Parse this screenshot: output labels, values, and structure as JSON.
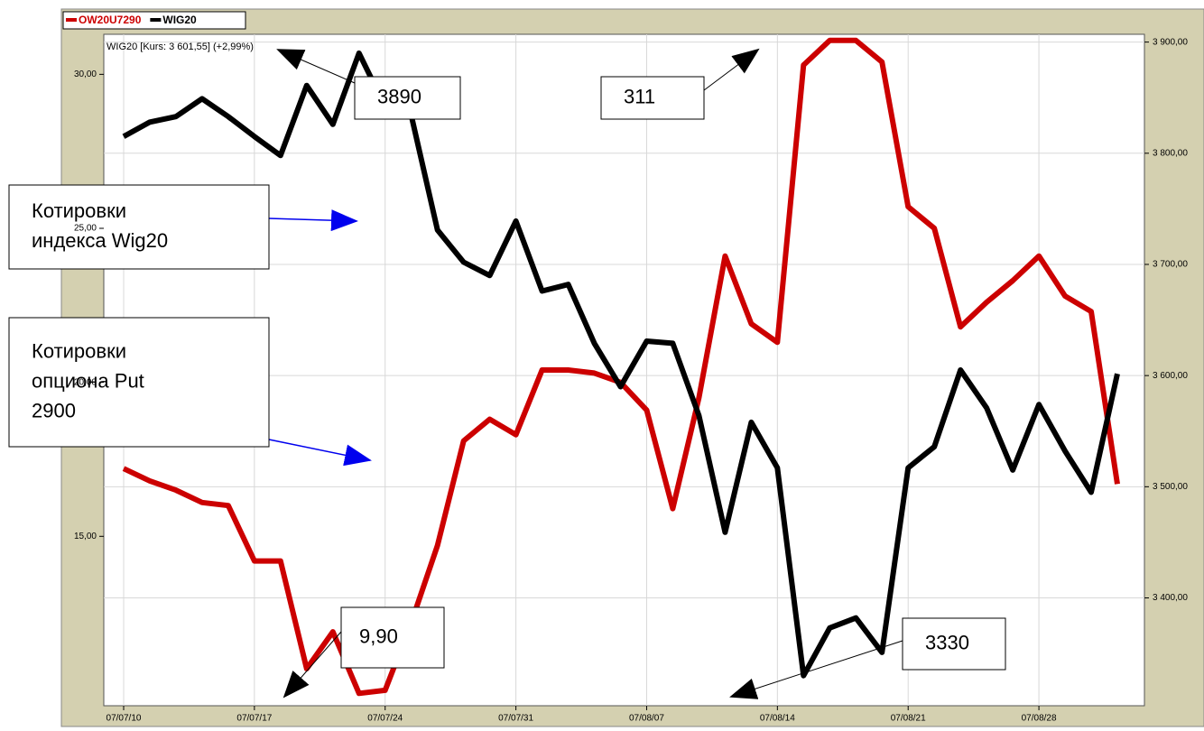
{
  "chart_data": {
    "type": "line",
    "info_text": "WIG20 [Kurs: 3 601,55] (+2,99%)",
    "categories": [
      "07/07/10",
      null,
      null,
      null,
      null,
      "07/07/17",
      null,
      null,
      null,
      null,
      "07/07/24",
      null,
      null,
      null,
      null,
      "07/07/31",
      null,
      null,
      null,
      null,
      "07/08/07",
      null,
      null,
      null,
      null,
      "07/08/14",
      null,
      null,
      null,
      null,
      "07/08/21",
      null,
      null,
      null,
      null,
      "07/08/28",
      null,
      null,
      null
    ],
    "series": [
      {
        "name": "OW20U7290",
        "color": "#cc0000",
        "axis": "y",
        "values": [
          17.2,
          16.8,
          16.5,
          16.1,
          16.0,
          14.2,
          14.2,
          10.7,
          11.9,
          9.9,
          10.0,
          12.2,
          14.7,
          18.1,
          18.8,
          18.3,
          20.4,
          20.4,
          20.3,
          20.0,
          19.1,
          15.9,
          19.5,
          24.1,
          21.9,
          21.3,
          30.3,
          31.1,
          31.1,
          30.4,
          25.7,
          25.0,
          21.8,
          22.6,
          23.3,
          24.1,
          22.8,
          22.3,
          16.7
        ]
      },
      {
        "name": "WIG20",
        "color": "#000000",
        "axis": "y2",
        "values": [
          3815,
          3828,
          3833,
          3849,
          3833,
          3815,
          3798,
          3861,
          3826,
          3890,
          3842,
          3834,
          3731,
          3702,
          3690,
          3739,
          3676,
          3682,
          3629,
          3590,
          3631,
          3629,
          3564,
          3459,
          3558,
          3517,
          3330,
          3373,
          3382,
          3351,
          3517,
          3536,
          3605,
          3571,
          3515,
          3574,
          3532,
          3495,
          3601.55
        ]
      }
    ],
    "ylim": [
      9.5,
      31.3
    ],
    "yticks": [
      {
        "value": 15,
        "label": "15,00"
      },
      {
        "value": 20,
        "label": "20,00"
      },
      {
        "value": 25,
        "label": "25,00"
      },
      {
        "value": 30,
        "label": "30,00"
      }
    ],
    "y2lim": [
      3303,
      3907
    ],
    "y2ticks": [
      {
        "value": 3400,
        "label": "3 400,00"
      },
      {
        "value": 3500,
        "label": "3 500,00"
      },
      {
        "value": 3600,
        "label": "3 600,00"
      },
      {
        "value": 3700,
        "label": "3 700,00"
      },
      {
        "value": 3800,
        "label": "3 800,00"
      },
      {
        "value": 3900,
        "label": "3 900,00"
      }
    ],
    "grid": true,
    "annotations": [
      {
        "lines": [
          "3890"
        ]
      },
      {
        "lines": [
          "311"
        ]
      },
      {
        "lines": [
          "9,90"
        ]
      },
      {
        "lines": [
          "3330"
        ]
      },
      {
        "lines": [
          "Котировки",
          "индекса Wig20"
        ]
      },
      {
        "lines": [
          "Котировки",
          "опциона Put",
          "2900"
        ]
      }
    ]
  }
}
